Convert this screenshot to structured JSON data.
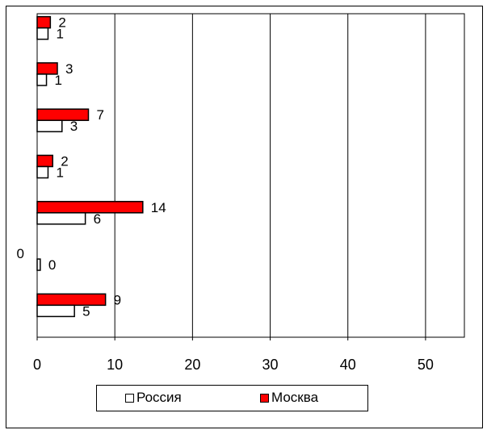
{
  "chart_data": {
    "type": "bar",
    "orientation": "horizontal",
    "xlim": [
      0,
      55
    ],
    "x_ticks": [
      0,
      10,
      20,
      30,
      40,
      50
    ],
    "grid": "vertical",
    "categories": [
      "",
      "",
      "",
      "",
      "",
      "",
      ""
    ],
    "series": [
      {
        "name": "Москва",
        "color": "#ff0000",
        "values": [
          1.7,
          2.6,
          6.6,
          2.0,
          13.6,
          0,
          8.8
        ],
        "labels": [
          "2",
          "3",
          "7",
          "2",
          "14",
          "0",
          "9"
        ]
      },
      {
        "name": "Россия",
        "color": "#ffffff",
        "values": [
          1.4,
          1.2,
          3.2,
          1.4,
          6.2,
          0.4,
          4.8
        ],
        "labels": [
          "1",
          "1",
          "3",
          "1",
          "6",
          "0",
          "5"
        ]
      }
    ],
    "legend_position": "bottom"
  }
}
